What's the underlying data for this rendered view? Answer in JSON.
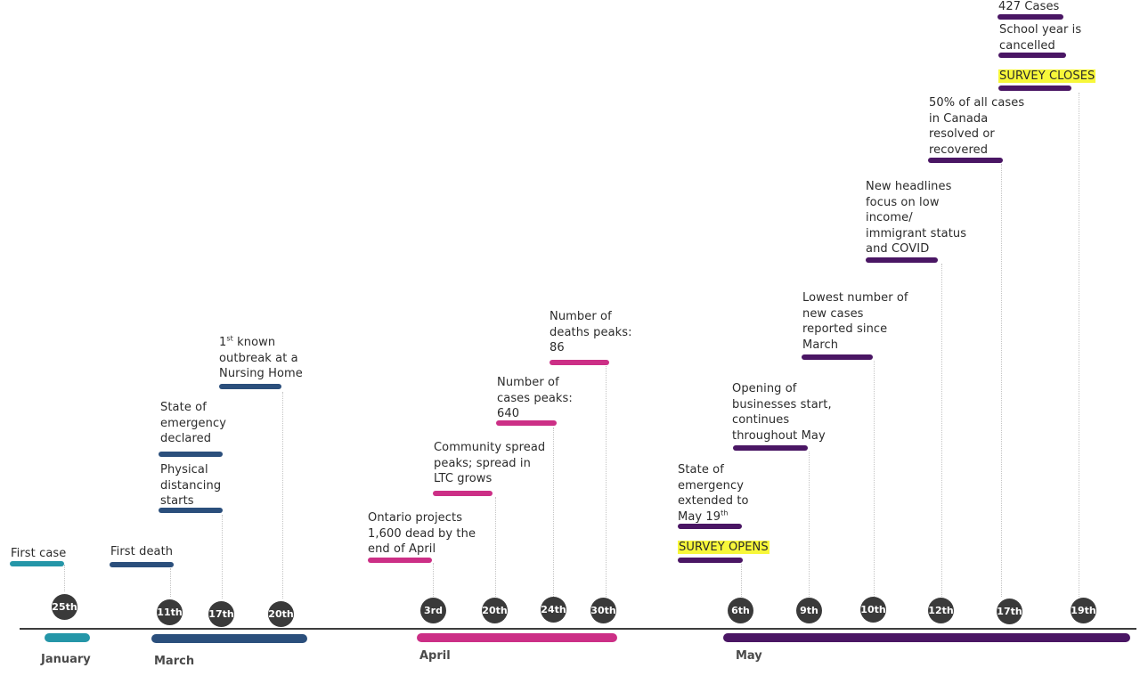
{
  "months": [
    {
      "label": "January",
      "color": "#2596a8"
    },
    {
      "label": "March",
      "color": "#2b4f7c"
    },
    {
      "label": "April",
      "color": "#cc2f86"
    },
    {
      "label": "May",
      "color": "#4a1664"
    }
  ],
  "days": [
    "25th",
    "11th",
    "17th",
    "20th",
    "3rd",
    "20th",
    "24th",
    "30th",
    "6th",
    "9th",
    "10th",
    "12th",
    "17th",
    "19th"
  ],
  "events": [
    {
      "text": "First case",
      "color": "#2596a8"
    },
    {
      "text": "First death",
      "color": "#2b4f7c"
    },
    {
      "text": "Physical\ndistancing\nstarts",
      "color": "#2b4f7c"
    },
    {
      "text": "State of\nemergency\ndeclared",
      "color": "#2b4f7c"
    },
    {
      "text_sup": "st",
      "text_pre": "1",
      "text_post": " known\noutbreak at a\nNursing Home",
      "color": "#2b4f7c"
    },
    {
      "text": "Ontario projects\n1,600 dead by the\nend of April",
      "color": "#cc2f86"
    },
    {
      "text": "Community spread\npeaks; spread in\nLTC grows",
      "color": "#cc2f86"
    },
    {
      "text": "Number of\ncases peaks:\n640",
      "color": "#cc2f86"
    },
    {
      "text": "Number of\ndeaths peaks:\n86",
      "color": "#cc2f86"
    },
    {
      "text": "SURVEY OPENS",
      "color": "#4a1664"
    },
    {
      "text_pre": "State of\nemergency\nextended to\nMay 19",
      "text_sup": "th",
      "text_post": "",
      "color": "#4a1664"
    },
    {
      "text": "Opening of\nbusinesses start,\ncontinues\nthroughout May",
      "color": "#4a1664"
    },
    {
      "text": "Lowest number of\nnew cases\nreported since\nMarch",
      "color": "#4a1664"
    },
    {
      "text": "New headlines\nfocus on low\nincome/\nimmigrant status\nand COVID",
      "color": "#4a1664"
    },
    {
      "text": "50% of all cases\nin Canada\nresolved or\nrecovered",
      "color": "#4a1664"
    },
    {
      "text": "SURVEY CLOSES",
      "color": "#4a1664"
    },
    {
      "text": "School year is\ncancelled",
      "color": "#4a1664"
    },
    {
      "text": "427 Cases",
      "color": "#4a1664"
    }
  ],
  "highlight_color": "#f7f73a"
}
